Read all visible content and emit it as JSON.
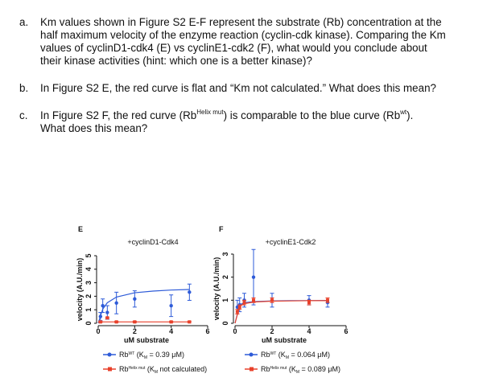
{
  "questions": [
    {
      "letter": "a.",
      "lines": [
        [
          {
            "text": "Km values shown in Figure S2 E-F represent the substrate (Rb) concentration at the"
          }
        ],
        [
          {
            "text": "half maximum velocity of the enzyme reaction (cyclin-cdk kinase). Comparing the Km"
          }
        ],
        [
          {
            "text": "values of cyclinD1-cdk4 (E) vs cyclinE1-cdk2 (F), what would you conclude about"
          }
        ],
        [
          {
            "text": "their kinase activities (hint: which one is a better kinase)?"
          }
        ]
      ]
    },
    {
      "letter": "b.",
      "lines": [
        [
          {
            "text": "In Figure S2 E, the red curve is flat and “Km not calculated.” What does this mean?"
          }
        ]
      ]
    },
    {
      "letter": "c.",
      "lines": [
        [
          {
            "text": "In Figure S2 F, the red curve (Rb"
          },
          {
            "text": "Helix mut",
            "style": "sup"
          },
          {
            "text": ") is comparable to the blue curve (Rb"
          },
          {
            "text": "wt",
            "style": "sup"
          },
          {
            "text": ")."
          }
        ],
        [
          {
            "text": "What does this mean?"
          }
        ]
      ]
    }
  ],
  "figure": {
    "panels": [
      {
        "letter": "E",
        "title": "+cyclinD1-Cdk4",
        "xlabel": "uM substrate",
        "ylabel": "velocity (A.U./min)",
        "xlim": [
          0,
          6
        ],
        "ylim": [
          0,
          5
        ],
        "xticks": [
          0,
          2,
          4,
          6
        ],
        "yticks": [
          0,
          1,
          2,
          3,
          4,
          5
        ],
        "series": [
          {
            "name": [
              {
                "text": "Rb"
              },
              {
                "text": "WT",
                "style": "sup"
              },
              {
                "text": " (K"
              },
              {
                "text": "M",
                "style": "sub"
              },
              {
                "text": " = 0.39 μM)"
              }
            ],
            "color": "#2e5bd8",
            "marker": "circle",
            "x": [
              0.125,
              0.25,
              0.5,
              1,
              2,
              4,
              5
            ],
            "values": [
              0.5,
              1.3,
              0.8,
              1.5,
              1.8,
              1.3,
              2.3
            ],
            "errors": [
              0.3,
              0.5,
              0.5,
              0.8,
              0.6,
              0.8,
              0.6
            ],
            "fit_x": [
              0,
              0.25,
              0.5,
              1,
              2,
              3,
              4,
              5
            ],
            "fit_y": [
              0,
              1.05,
              1.52,
              1.94,
              2.26,
              2.38,
              2.46,
              2.5
            ]
          },
          {
            "name": [
              {
                "text": "Rb"
              },
              {
                "text": "Helix mut",
                "style": "sup"
              },
              {
                "text": " (K"
              },
              {
                "text": "M",
                "style": "sub"
              },
              {
                "text": " not calculated)"
              }
            ],
            "color": "#e8412b",
            "marker": "square",
            "x": [
              0.125,
              0.5,
              1,
              2,
              4,
              5
            ],
            "values": [
              0.1,
              0.4,
              0.1,
              0.1,
              0.1,
              0.1
            ],
            "errors": [
              0.05,
              0.05,
              0.05,
              0.05,
              0.05,
              0.05
            ],
            "fit_x": [
              0,
              5
            ],
            "fit_y": [
              0.1,
              0.1
            ]
          }
        ]
      },
      {
        "letter": "F",
        "title": "+cyclinE1-Cdk2",
        "xlabel": "uM substrate",
        "ylabel": "velocity (A.U./min)",
        "xlim": [
          0,
          6
        ],
        "ylim": [
          0,
          3
        ],
        "xticks": [
          0,
          2,
          4,
          6
        ],
        "yticks": [
          0,
          1,
          2,
          3
        ],
        "series": [
          {
            "name": [
              {
                "text": "Rb"
              },
              {
                "text": "WT",
                "style": "sup"
              },
              {
                "text": " (K"
              },
              {
                "text": "M",
                "style": "sub"
              },
              {
                "text": " = 0.064 μM)"
              }
            ],
            "color": "#2e5bd8",
            "marker": "circle",
            "x": [
              0.125,
              0.25,
              0.5,
              1,
              2,
              4,
              5
            ],
            "values": [
              0.7,
              0.8,
              1.0,
              2.0,
              1.0,
              1.0,
              0.9
            ],
            "errors": [
              0.3,
              0.3,
              0.3,
              1.2,
              0.3,
              0.2,
              0.2
            ],
            "fit_x": [
              0,
              0.25,
              0.5,
              1,
              2,
              3,
              4,
              5
            ],
            "fit_y": [
              0,
              0.8,
              0.89,
              0.94,
              0.97,
              0.98,
              0.98,
              0.99
            ]
          },
          {
            "name": [
              {
                "text": "Rb"
              },
              {
                "text": "Helix mut",
                "style": "sup"
              },
              {
                "text": " (K"
              },
              {
                "text": "M",
                "style": "sub"
              },
              {
                "text": " = 0.089 μM)"
              }
            ],
            "color": "#e8412b",
            "marker": "square",
            "x": [
              0.125,
              0.25,
              0.5,
              1,
              2,
              4,
              5
            ],
            "values": [
              0.5,
              0.7,
              0.9,
              1.0,
              1.0,
              0.9,
              1.0
            ],
            "errors": [
              0.1,
              0.1,
              0.1,
              0.1,
              0.1,
              0.1,
              0.1
            ],
            "fit_x": [
              0,
              0.25,
              0.5,
              1,
              2,
              3,
              4,
              5
            ],
            "fit_y": [
              0,
              0.74,
              0.85,
              0.92,
              0.96,
              0.97,
              0.98,
              0.98
            ]
          }
        ]
      }
    ]
  }
}
